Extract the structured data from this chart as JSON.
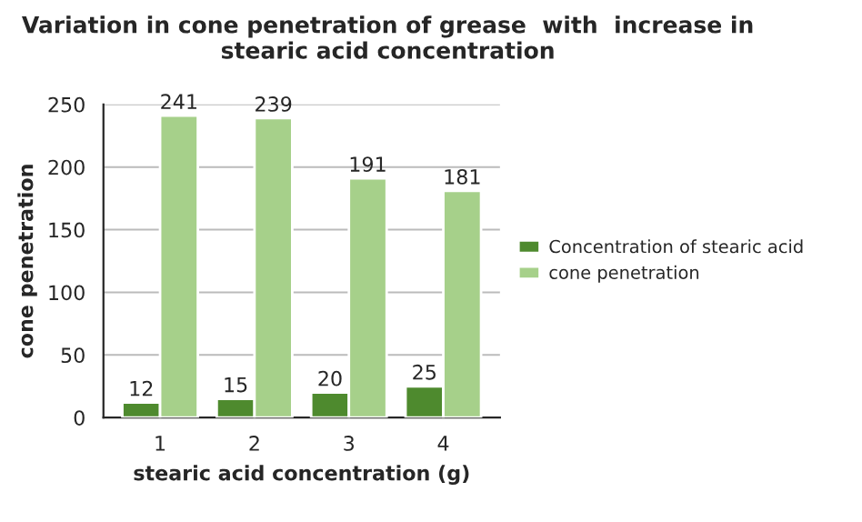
{
  "chart_data": {
    "type": "bar",
    "title": "Variation in cone penetration of grease  with  increase in stearic acid concentration",
    "xlabel": "stearic acid concentration (g)",
    "ylabel": "cone penetration",
    "categories": [
      "1",
      "2",
      "3",
      "4"
    ],
    "series": [
      {
        "name": "Concentration of stearic acid",
        "color": "#4e8a2e",
        "values": [
          12,
          15,
          20,
          25
        ]
      },
      {
        "name": "cone penetration",
        "color": "#a6d08a",
        "values": [
          241,
          239,
          191,
          181
        ]
      }
    ],
    "ylim": [
      0,
      250
    ],
    "yticks": [
      0,
      50,
      100,
      150,
      200,
      250
    ],
    "grid": "y",
    "legend": "right",
    "data_labels": true
  }
}
